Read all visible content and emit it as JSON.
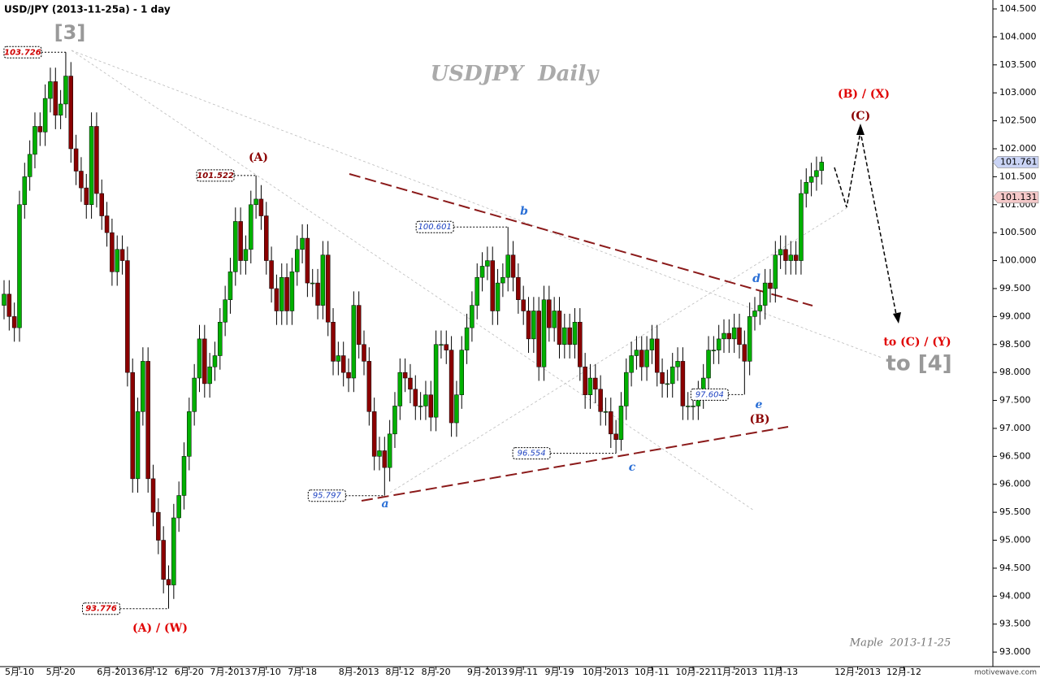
{
  "chart_data": {
    "type": "candlestick",
    "title": "USD/JPY (2013-11-25a) - 1 day",
    "watermark": "USDJPY  Daily",
    "credit": "Maple  2013-11-25",
    "source": "motivewave.com",
    "labels": [
      "[3]",
      "(A)",
      "(A) / (W)",
      "b",
      "a",
      "c",
      "d",
      "e",
      "(B)",
      "(B) / (X)",
      "(C)",
      "to (C) / (Y)",
      "to [4]"
    ],
    "up_color": "#00b000",
    "down_color": "#8b0000",
    "xlim": [
      -0.79,
      192.3
    ],
    "ylim": [
      92.74,
      104.66
    ],
    "xticks": [
      {
        "value": 3,
        "label": "5月-10"
      },
      {
        "value": 11,
        "label": "5月-20"
      },
      {
        "value": 22,
        "label": "6月-2013"
      },
      {
        "value": 29,
        "label": "6月-12"
      },
      {
        "value": 36,
        "label": "6月-20"
      },
      {
        "value": 44,
        "label": "7月-2013"
      },
      {
        "value": 51,
        "label": "7月-10"
      },
      {
        "value": 58,
        "label": "7月-18"
      },
      {
        "value": 69,
        "label": "8月-2013"
      },
      {
        "value": 77,
        "label": "8月-12"
      },
      {
        "value": 84,
        "label": "8月-20"
      },
      {
        "value": 94,
        "label": "9月-2013"
      },
      {
        "value": 101,
        "label": "9月-11"
      },
      {
        "value": 108,
        "label": "9月-19"
      },
      {
        "value": 117,
        "label": "10月-2013"
      },
      {
        "value": 126,
        "label": "10月-11"
      },
      {
        "value": 134,
        "label": "10月-22"
      },
      {
        "value": 142,
        "label": "11月-2013"
      },
      {
        "value": 151,
        "label": "11月-13"
      },
      {
        "value": 166,
        "label": "12月-2013"
      },
      {
        "value": 175,
        "label": "12月-12"
      }
    ],
    "yticks": [
      {
        "value": 93.0,
        "label": "93.000"
      },
      {
        "value": 93.5,
        "label": "93.500"
      },
      {
        "value": 94.0,
        "label": "94.000"
      },
      {
        "value": 94.5,
        "label": "94.500"
      },
      {
        "value": 95.0,
        "label": "95.000"
      },
      {
        "value": 95.5,
        "label": "95.500"
      },
      {
        "value": 96.0,
        "label": "96.000"
      },
      {
        "value": 96.5,
        "label": "96.500"
      },
      {
        "value": 97.0,
        "label": "97.000"
      },
      {
        "value": 97.5,
        "label": "97.500"
      },
      {
        "value": 98.0,
        "label": "98.000"
      },
      {
        "value": 98.5,
        "label": "98.500"
      },
      {
        "value": 99.0,
        "label": "99.000"
      },
      {
        "value": 99.5,
        "label": "99.500"
      },
      {
        "value": 100.0,
        "label": "100.000"
      },
      {
        "value": 100.5,
        "label": "100.500"
      },
      {
        "value": 101.0,
        "label": "101.000"
      },
      {
        "value": 101.5,
        "label": "101.500"
      },
      {
        "value": 102.0,
        "label": "102.000"
      },
      {
        "value": 102.5,
        "label": "102.500"
      },
      {
        "value": 103.0,
        "label": "103.000"
      },
      {
        "value": 103.5,
        "label": "103.500"
      },
      {
        "value": 104.0,
        "label": "104.000"
      },
      {
        "value": 104.5,
        "label": "104.500"
      }
    ],
    "extreme_tags": [
      {
        "value": 103.726,
        "color": "#d00000"
      },
      {
        "value": 101.522,
        "color": "#8b0000"
      },
      {
        "value": 93.776,
        "color": "#d00000"
      },
      {
        "value": 95.797,
        "color": "#1a3fc0"
      },
      {
        "value": 100.601,
        "color": "#1a3fc0"
      },
      {
        "value": 96.554,
        "color": "#1a3fc0"
      },
      {
        "value": 97.604,
        "color": "#1a3fc0"
      }
    ],
    "price_tags": [
      {
        "value": 101.761,
        "color": "#c9d3f5"
      },
      {
        "value": 101.131,
        "color": "#f5c9c9"
      }
    ],
    "candles": [
      [
        99.2,
        99.65,
        98.95,
        99.4
      ],
      [
        99.4,
        99.65,
        98.75,
        99.0
      ],
      [
        99.0,
        99.25,
        98.55,
        98.8
      ],
      [
        98.8,
        101.25,
        98.55,
        101.0
      ],
      [
        101.0,
        101.75,
        100.75,
        101.5
      ],
      [
        101.5,
        102.15,
        101.25,
        101.9
      ],
      [
        101.9,
        102.65,
        101.65,
        102.4
      ],
      [
        102.4,
        102.65,
        102.05,
        102.3
      ],
      [
        102.3,
        103.15,
        102.05,
        102.9
      ],
      [
        102.9,
        103.45,
        102.65,
        103.2
      ],
      [
        103.2,
        103.45,
        102.35,
        102.6
      ],
      [
        102.6,
        103.05,
        102.35,
        102.8
      ],
      [
        102.8,
        103.726,
        102.55,
        103.3
      ],
      [
        103.3,
        103.55,
        101.75,
        102.0
      ],
      [
        102.0,
        102.25,
        101.35,
        101.6
      ],
      [
        101.6,
        101.85,
        101.05,
        101.3
      ],
      [
        101.3,
        101.55,
        100.75,
        101.0
      ],
      [
        101.0,
        102.65,
        100.75,
        102.4
      ],
      [
        102.4,
        102.65,
        100.95,
        101.2
      ],
      [
        101.2,
        101.45,
        100.55,
        100.8
      ],
      [
        100.8,
        101.05,
        100.25,
        100.5
      ],
      [
        100.5,
        100.75,
        99.55,
        99.8
      ],
      [
        99.8,
        100.45,
        99.55,
        100.2
      ],
      [
        100.2,
        100.45,
        99.75,
        100.0
      ],
      [
        100.0,
        100.25,
        97.75,
        98.0
      ],
      [
        98.0,
        98.25,
        95.85,
        96.1
      ],
      [
        96.1,
        97.55,
        95.85,
        97.3
      ],
      [
        97.3,
        98.45,
        97.05,
        98.2
      ],
      [
        98.2,
        98.45,
        95.85,
        96.1
      ],
      [
        96.1,
        96.35,
        95.25,
        95.5
      ],
      [
        95.5,
        95.75,
        94.75,
        95.0
      ],
      [
        95.0,
        95.25,
        94.05,
        94.3
      ],
      [
        94.3,
        94.55,
        93.776,
        94.2
      ],
      [
        94.2,
        95.65,
        93.95,
        95.4
      ],
      [
        95.4,
        96.05,
        95.15,
        95.8
      ],
      [
        95.8,
        96.75,
        95.55,
        96.5
      ],
      [
        96.5,
        97.55,
        96.25,
        97.3
      ],
      [
        97.3,
        98.15,
        97.05,
        97.9
      ],
      [
        97.9,
        98.85,
        97.65,
        98.6
      ],
      [
        98.6,
        98.85,
        97.55,
        97.8
      ],
      [
        97.8,
        98.35,
        97.55,
        98.1
      ],
      [
        98.1,
        98.55,
        97.85,
        98.3
      ],
      [
        98.3,
        99.15,
        98.05,
        98.9
      ],
      [
        98.9,
        99.55,
        98.65,
        99.3
      ],
      [
        99.3,
        100.05,
        99.05,
        99.8
      ],
      [
        99.8,
        100.95,
        99.55,
        100.7
      ],
      [
        100.7,
        100.95,
        99.75,
        100.0
      ],
      [
        100.0,
        100.45,
        99.75,
        100.2
      ],
      [
        100.2,
        101.25,
        99.95,
        101.0
      ],
      [
        101.0,
        101.522,
        100.75,
        101.1
      ],
      [
        101.1,
        101.35,
        100.55,
        100.8
      ],
      [
        100.8,
        101.05,
        99.75,
        100.0
      ],
      [
        100.0,
        100.25,
        99.25,
        99.5
      ],
      [
        99.5,
        99.75,
        98.85,
        99.1
      ],
      [
        99.1,
        99.95,
        98.85,
        99.7
      ],
      [
        99.7,
        99.95,
        98.85,
        99.1
      ],
      [
        99.1,
        100.05,
        98.85,
        99.8
      ],
      [
        99.8,
        100.45,
        99.55,
        100.2
      ],
      [
        100.2,
        100.65,
        99.95,
        100.4
      ],
      [
        100.4,
        100.65,
        99.35,
        99.6
      ],
      [
        99.6,
        99.85,
        99.35,
        99.6
      ],
      [
        99.6,
        99.85,
        98.95,
        99.2
      ],
      [
        99.2,
        100.35,
        98.95,
        100.1
      ],
      [
        100.1,
        100.35,
        98.65,
        98.9
      ],
      [
        98.9,
        99.15,
        97.95,
        98.2
      ],
      [
        98.2,
        98.55,
        97.95,
        98.3
      ],
      [
        98.3,
        98.55,
        97.75,
        98.0
      ],
      [
        98.0,
        98.25,
        97.65,
        97.9
      ],
      [
        97.9,
        99.45,
        97.65,
        99.2
      ],
      [
        99.2,
        99.45,
        98.25,
        98.5
      ],
      [
        98.5,
        98.75,
        97.95,
        98.2
      ],
      [
        98.2,
        98.45,
        97.05,
        97.3
      ],
      [
        97.3,
        97.55,
        96.25,
        96.5
      ],
      [
        96.5,
        96.85,
        96.25,
        96.6
      ],
      [
        96.6,
        96.85,
        95.797,
        96.3
      ],
      [
        96.3,
        97.15,
        96.05,
        96.9
      ],
      [
        96.9,
        97.65,
        96.65,
        97.4
      ],
      [
        97.4,
        98.25,
        97.15,
        98.0
      ],
      [
        98.0,
        98.25,
        97.65,
        97.9
      ],
      [
        97.9,
        98.15,
        97.45,
        97.7
      ],
      [
        97.7,
        97.95,
        97.15,
        97.4
      ],
      [
        97.4,
        97.65,
        97.15,
        97.4
      ],
      [
        97.4,
        97.85,
        97.15,
        97.6
      ],
      [
        97.6,
        97.85,
        96.95,
        97.2
      ],
      [
        97.2,
        98.75,
        96.95,
        98.5
      ],
      [
        98.5,
        98.75,
        98.25,
        98.5
      ],
      [
        98.5,
        98.75,
        98.15,
        98.4
      ],
      [
        98.4,
        98.65,
        96.85,
        97.1
      ],
      [
        97.1,
        97.85,
        96.85,
        97.6
      ],
      [
        97.6,
        98.65,
        97.35,
        98.4
      ],
      [
        98.4,
        99.05,
        98.15,
        98.8
      ],
      [
        98.8,
        99.45,
        98.55,
        99.2
      ],
      [
        99.2,
        99.95,
        98.95,
        99.7
      ],
      [
        99.7,
        100.15,
        99.45,
        99.9
      ],
      [
        99.9,
        100.25,
        99.65,
        100.0
      ],
      [
        100.0,
        100.25,
        98.85,
        99.1
      ],
      [
        99.1,
        99.85,
        98.85,
        99.6
      ],
      [
        99.6,
        99.95,
        99.35,
        99.7
      ],
      [
        99.7,
        100.601,
        99.45,
        100.1
      ],
      [
        100.1,
        100.35,
        99.45,
        99.7
      ],
      [
        99.7,
        99.95,
        99.05,
        99.3
      ],
      [
        99.3,
        99.55,
        98.85,
        99.1
      ],
      [
        99.1,
        99.35,
        98.35,
        98.6
      ],
      [
        98.6,
        99.35,
        98.35,
        99.1
      ],
      [
        99.1,
        99.35,
        97.85,
        98.1
      ],
      [
        98.1,
        99.55,
        97.85,
        99.3
      ],
      [
        99.3,
        99.55,
        98.55,
        98.8
      ],
      [
        98.8,
        99.35,
        98.55,
        99.1
      ],
      [
        99.1,
        99.35,
        98.25,
        98.5
      ],
      [
        98.5,
        99.05,
        98.25,
        98.8
      ],
      [
        98.8,
        99.05,
        98.25,
        98.5
      ],
      [
        98.5,
        99.15,
        98.25,
        98.9
      ],
      [
        98.9,
        99.15,
        97.85,
        98.1
      ],
      [
        98.1,
        98.35,
        97.35,
        97.6
      ],
      [
        97.6,
        98.15,
        97.35,
        97.9
      ],
      [
        97.9,
        98.15,
        97.45,
        97.7
      ],
      [
        97.7,
        97.95,
        97.05,
        97.3
      ],
      [
        97.3,
        97.55,
        97.05,
        97.3
      ],
      [
        97.3,
        97.55,
        96.65,
        96.9
      ],
      [
        96.9,
        97.15,
        96.554,
        96.8
      ],
      [
        96.8,
        97.65,
        96.6,
        97.4
      ],
      [
        97.4,
        98.25,
        97.15,
        98.0
      ],
      [
        98.0,
        98.55,
        97.75,
        98.3
      ],
      [
        98.3,
        98.65,
        98.05,
        98.4
      ],
      [
        98.4,
        98.65,
        97.85,
        98.1
      ],
      [
        98.1,
        98.65,
        97.85,
        98.4
      ],
      [
        98.4,
        98.85,
        98.15,
        98.6
      ],
      [
        98.6,
        98.85,
        97.75,
        98.0
      ],
      [
        98.0,
        98.25,
        97.55,
        97.8
      ],
      [
        97.8,
        98.05,
        97.55,
        97.8
      ],
      [
        97.8,
        98.35,
        97.55,
        98.1
      ],
      [
        98.1,
        98.45,
        97.85,
        98.2
      ],
      [
        98.2,
        98.45,
        97.15,
        97.4
      ],
      [
        97.4,
        97.65,
        97.15,
        97.4
      ],
      [
        97.4,
        97.65,
        97.15,
        97.4
      ],
      [
        97.4,
        97.85,
        97.15,
        97.6
      ],
      [
        97.6,
        98.15,
        97.35,
        97.9
      ],
      [
        97.9,
        98.65,
        97.65,
        98.4
      ],
      [
        98.4,
        98.65,
        98.15,
        98.4
      ],
      [
        98.4,
        98.85,
        98.15,
        98.6
      ],
      [
        98.6,
        98.95,
        98.35,
        98.7
      ],
      [
        98.7,
        98.95,
        98.35,
        98.6
      ],
      [
        98.6,
        99.05,
        98.35,
        98.8
      ],
      [
        98.8,
        99.05,
        98.25,
        98.5
      ],
      [
        98.5,
        98.75,
        97.604,
        98.2
      ],
      [
        98.2,
        99.25,
        97.95,
        99.0
      ],
      [
        99.0,
        99.35,
        98.75,
        99.1
      ],
      [
        99.1,
        99.45,
        98.85,
        99.2
      ],
      [
        99.2,
        99.85,
        98.95,
        99.6
      ],
      [
        99.6,
        99.85,
        99.25,
        99.5
      ],
      [
        99.5,
        100.35,
        99.25,
        100.1
      ],
      [
        100.1,
        100.45,
        99.85,
        100.2
      ],
      [
        100.2,
        100.45,
        99.75,
        100.0
      ],
      [
        100.0,
        100.35,
        99.75,
        100.1
      ],
      [
        100.1,
        100.35,
        99.75,
        100.0
      ],
      [
        100.0,
        101.45,
        99.75,
        101.2
      ],
      [
        101.2,
        101.65,
        100.95,
        101.4
      ],
      [
        101.4,
        101.75,
        101.15,
        101.5
      ],
      [
        101.5,
        101.86,
        101.25,
        101.61
      ],
      [
        101.61,
        101.86,
        101.36,
        101.761
      ]
    ]
  }
}
